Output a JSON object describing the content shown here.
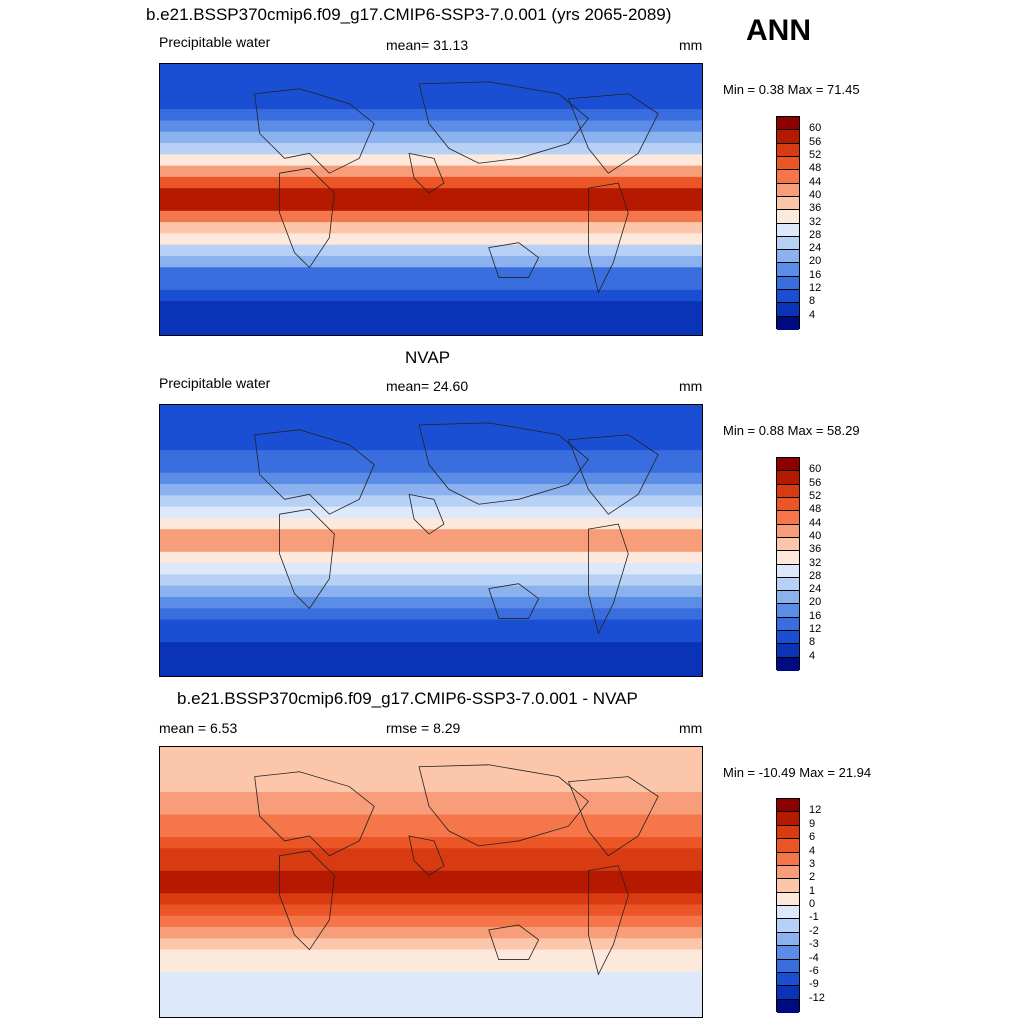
{
  "header": {
    "main_title": "b.e21.BSSP370cmip6.f09_g17.CMIP6-SSP3-7.0.001 (yrs 2065-2089)",
    "season": "ANN"
  },
  "panels": [
    {
      "title": "",
      "left_label": "Precipitable water",
      "center_label": "mean=  31.13",
      "units": "mm",
      "minmax": "Min =   0.38 Max =  71.45",
      "colorbar_ticks": [
        "60",
        "56",
        "52",
        "48",
        "44",
        "40",
        "36",
        "32",
        "28",
        "24",
        "20",
        "16",
        "12",
        "8",
        "4"
      ],
      "colorbar_colors": [
        "#8b0000",
        "#b51a00",
        "#d83a12",
        "#ec5626",
        "#f4764a",
        "#f79d7a",
        "#fbc6a9",
        "#fde8dc",
        "#dde9fb",
        "#b7d0f6",
        "#8cb1ef",
        "#5c8de6",
        "#3a6ede",
        "#1b4fd3",
        "#0a33b8",
        "#000a82"
      ],
      "fields": {
        "north_polar": 0.1,
        "tropics": 1.0,
        "south_polar": 0.06
      }
    },
    {
      "title": "NVAP",
      "left_label": "Precipitable water",
      "center_label": "mean=  24.60",
      "units": "mm",
      "minmax": "Min =   0.88 Max =  58.29",
      "colorbar_ticks": [
        "60",
        "56",
        "52",
        "48",
        "44",
        "40",
        "36",
        "32",
        "28",
        "24",
        "20",
        "16",
        "12",
        "8",
        "4"
      ],
      "colorbar_colors": [
        "#8b0000",
        "#b51a00",
        "#d83a12",
        "#ec5626",
        "#f4764a",
        "#f79d7a",
        "#fbc6a9",
        "#fde8dc",
        "#dde9fb",
        "#b7d0f6",
        "#8cb1ef",
        "#5c8de6",
        "#3a6ede",
        "#1b4fd3",
        "#0a33b8",
        "#000a82"
      ],
      "fields": {
        "north_polar": 0.12,
        "tropics": 0.7,
        "south_polar": 0.08
      }
    },
    {
      "title": "b.e21.BSSP370cmip6.f09_g17.CMIP6-SSP3-7.0.001 - NVAP",
      "left_label": "mean =   6.53",
      "center_label": "rmse =   8.29",
      "units": "mm",
      "minmax": "Min = -10.49 Max =  21.94",
      "colorbar_ticks": [
        "12",
        "9",
        "6",
        "4",
        "3",
        "2",
        "1",
        "0",
        "-1",
        "-2",
        "-3",
        "-4",
        "-6",
        "-9",
        "-12"
      ],
      "colorbar_colors": [
        "#8b0000",
        "#b51a00",
        "#d83a12",
        "#ec5626",
        "#f4764a",
        "#f79d7a",
        "#fbc6a9",
        "#fde8dc",
        "#dde9fb",
        "#b7d0f6",
        "#8cb1ef",
        "#5c8de6",
        "#3a6ede",
        "#1b4fd3",
        "#0a33b8",
        "#000a82"
      ],
      "fields": {
        "north_polar": 0.6,
        "tropics": 1.0,
        "south_polar": 0.45
      }
    }
  ]
}
